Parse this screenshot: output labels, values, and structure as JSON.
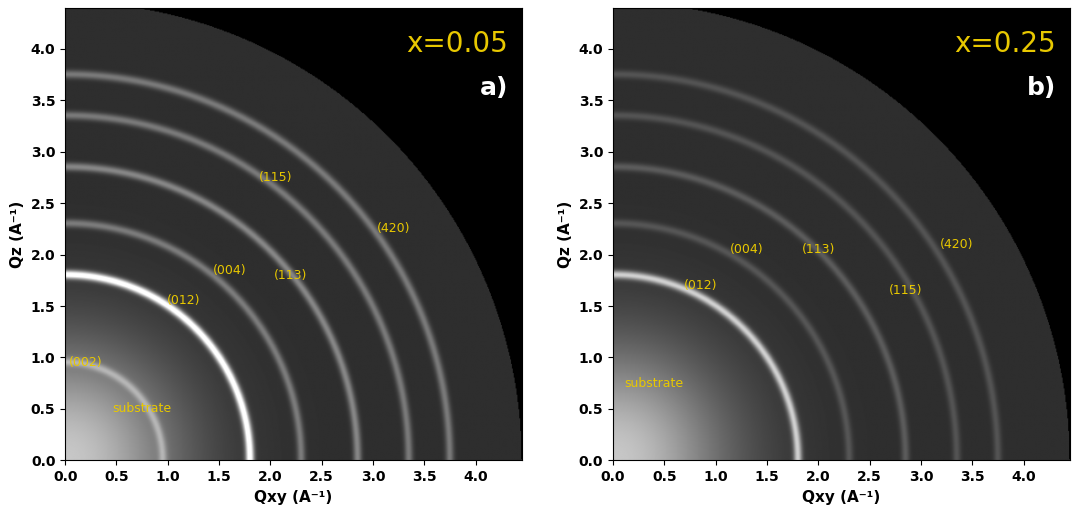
{
  "chart_data": [
    {
      "type": "image",
      "title": "x=0.05",
      "panel_label": "a)",
      "x_label": "Qxy (A⁻¹)",
      "y_label": "Qz (A⁻¹)",
      "xlim": [
        0,
        4.45
      ],
      "ylim": [
        0,
        4.4
      ],
      "xticks": [
        {
          "value": 0,
          "label": "0.0"
        },
        0.5,
        {
          "value": 1,
          "label": "1.0"
        },
        1.5,
        {
          "value": 2,
          "label": "2.0"
        },
        2.5,
        {
          "value": 3,
          "label": "3.0"
        },
        3.5,
        {
          "value": 4,
          "label": "4.0"
        }
      ],
      "yticks": [
        {
          "value": 0,
          "label": "0.0"
        },
        0.5,
        {
          "value": 1,
          "label": "1.0"
        },
        1.5,
        {
          "value": 2,
          "label": "2.0"
        },
        2.5,
        {
          "value": 3,
          "label": "3.0"
        },
        3.5,
        {
          "value": 4,
          "label": "4.0"
        }
      ],
      "detector_q_max": 4.45,
      "rings": [
        {
          "q": 0.95,
          "intensity": 0.25
        },
        {
          "q": 1.8,
          "intensity": 0.9
        },
        {
          "q": 2.3,
          "intensity": 0.3
        },
        {
          "q": 2.85,
          "intensity": 0.35
        },
        {
          "q": 3.35,
          "intensity": 0.3
        },
        {
          "q": 3.75,
          "intensity": 0.3
        }
      ],
      "annotations": [
        {
          "text": "(002)",
          "x": 0.2,
          "y": 0.95
        },
        {
          "text": "substrate",
          "x": 0.75,
          "y": 0.5
        },
        {
          "text": "(012)",
          "x": 1.15,
          "y": 1.55
        },
        {
          "text": "(004)",
          "x": 1.6,
          "y": 1.85
        },
        {
          "text": "(113)",
          "x": 2.2,
          "y": 1.8
        },
        {
          "text": "(115)",
          "x": 2.05,
          "y": 2.75
        },
        {
          "text": "(420)",
          "x": 3.2,
          "y": 2.25
        }
      ],
      "color": "#e8c800",
      "tick_labels": true
    },
    {
      "type": "image",
      "title": "x=0.25",
      "panel_label": "b)",
      "x_label": "Qxy (A⁻¹)",
      "y_label": "Qz (A⁻¹)",
      "xlim": [
        0,
        4.45
      ],
      "ylim": [
        0,
        4.4
      ],
      "xticks": [
        {
          "value": 0,
          "label": "0.0"
        },
        0.5,
        {
          "value": 1,
          "label": "1.0"
        },
        1.5,
        {
          "value": 2,
          "label": "2.0"
        },
        2.5,
        {
          "value": 3,
          "label": "3.0"
        },
        3.5,
        {
          "value": 4,
          "label": "4.0"
        }
      ],
      "yticks": [
        {
          "value": 0,
          "label": "0.0"
        },
        0.5,
        {
          "value": 1,
          "label": "1.0"
        },
        1.5,
        {
          "value": 2,
          "label": "2.0"
        },
        2.5,
        {
          "value": 3,
          "label": "3.0"
        },
        3.5,
        {
          "value": 4,
          "label": "4.0"
        }
      ],
      "detector_q_max": 4.45,
      "rings": [
        {
          "q": 1.8,
          "intensity": 0.6
        },
        {
          "q": 2.3,
          "intensity": 0.15
        },
        {
          "q": 2.85,
          "intensity": 0.18
        },
        {
          "q": 3.35,
          "intensity": 0.15
        },
        {
          "q": 3.75,
          "intensity": 0.15
        }
      ],
      "annotations": [
        {
          "text": "substrate",
          "x": 0.4,
          "y": 0.75
        },
        {
          "text": "(012)",
          "x": 0.85,
          "y": 1.7
        },
        {
          "text": "(004)",
          "x": 1.3,
          "y": 2.05
        },
        {
          "text": "(113)",
          "x": 2.0,
          "y": 2.05
        },
        {
          "text": "(115)",
          "x": 2.85,
          "y": 1.65
        },
        {
          "text": "(420)",
          "x": 3.35,
          "y": 2.1
        }
      ],
      "color": "#e8c800",
      "tick_labels": true
    }
  ]
}
